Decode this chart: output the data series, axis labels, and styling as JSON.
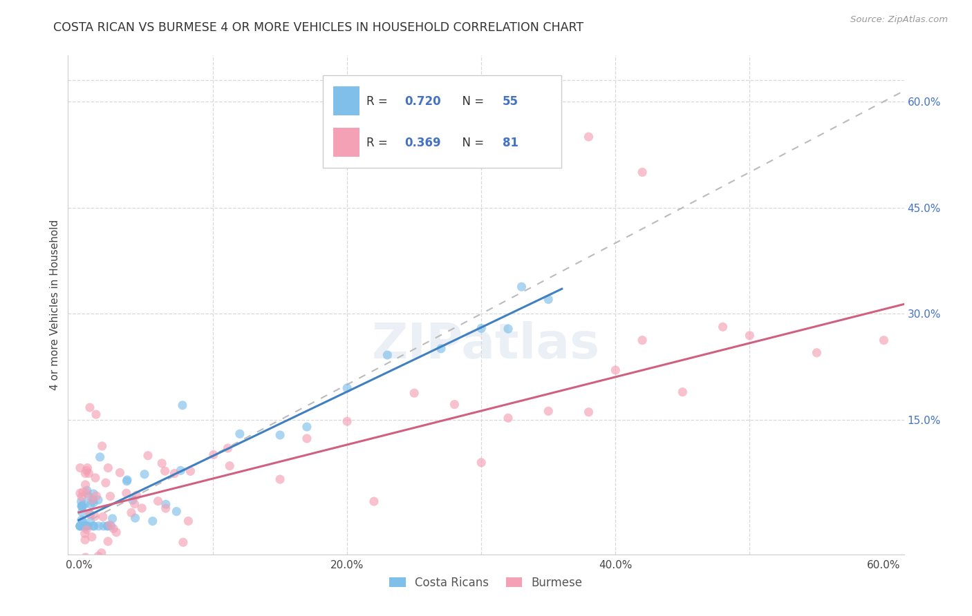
{
  "title": "COSTA RICAN VS BURMESE 4 OR MORE VEHICLES IN HOUSEHOLD CORRELATION CHART",
  "source": "Source: ZipAtlas.com",
  "ylabel": "4 or more Vehicles in Household",
  "color_blue": "#7fbfea",
  "color_pink": "#f4a0b5",
  "line_blue": "#4080c0",
  "line_pink": "#d06080",
  "dashed_line_color": "#bbbbbb",
  "background_color": "#ffffff",
  "grid_color": "#d8d8d8",
  "watermark": "ZIPatlas",
  "R_cr": 0.72,
  "N_cr": 55,
  "R_bm": 0.369,
  "N_bm": 81
}
